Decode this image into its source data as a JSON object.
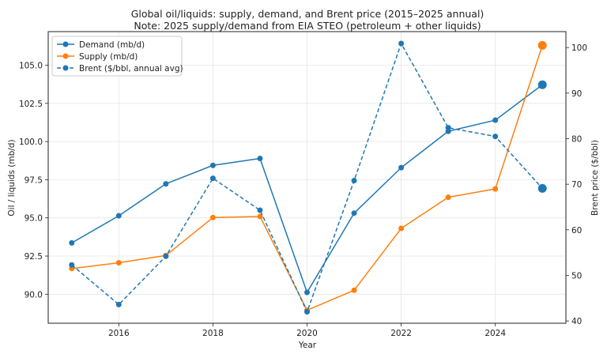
{
  "chart_data": {
    "type": "line",
    "title": "Global oil/liquids: supply, demand, and Brent price (2015–2025 annual)",
    "subtitle": "Note: 2025 supply/demand from EIA STEO (petroleum + other liquids)",
    "xlabel": "Year",
    "ylabel": "Oil / liquids (mb/d)",
    "y2label": "Brent price ($/bbl)",
    "x": [
      2015,
      2016,
      2017,
      2018,
      2019,
      2020,
      2021,
      2022,
      2023,
      2024,
      2025
    ],
    "xlim": [
      2014.5,
      2025.5
    ],
    "ylim": [
      88.1,
      107.2
    ],
    "y2lim": [
      39.5,
      103.5
    ],
    "xticks": [
      2016,
      2018,
      2020,
      2022,
      2024
    ],
    "xtick_labels": [
      "2016",
      "2018",
      "2020",
      "2022",
      "2024"
    ],
    "yticks": [
      90.0,
      92.5,
      95.0,
      97.5,
      100.0,
      102.5,
      105.0
    ],
    "ytick_labels": [
      "90.0",
      "92.5",
      "95.0",
      "97.5",
      "100.0",
      "102.5",
      "105.0"
    ],
    "y2ticks": [
      40,
      50,
      60,
      70,
      80,
      90,
      100
    ],
    "y2tick_labels": [
      "40",
      "50",
      "60",
      "70",
      "80",
      "90",
      "100"
    ],
    "grid": true,
    "legend_position": "top-left",
    "series": [
      {
        "name": "Demand (mb/d)",
        "axis": "left",
        "color": "#1f77b4",
        "style": "solid",
        "values": [
          93.36,
          95.14,
          97.23,
          98.44,
          98.89,
          90.12,
          95.31,
          98.29,
          100.67,
          101.4,
          103.72
        ],
        "highlight_last": true
      },
      {
        "name": "Supply (mb/d)",
        "axis": "left",
        "color": "#ff7f0e",
        "style": "solid",
        "values": [
          91.68,
          92.06,
          92.54,
          95.02,
          95.09,
          88.95,
          90.26,
          94.31,
          96.35,
          96.9,
          106.3
        ],
        "highlight_last": true
      },
      {
        "name": "Brent ($/bbl, annual avg)",
        "axis": "right",
        "color": "#1f77b4",
        "style": "dashed",
        "values": [
          52.3,
          43.6,
          54.2,
          71.3,
          64.3,
          42.0,
          70.8,
          100.9,
          82.4,
          80.5,
          69.1
        ],
        "highlight_last": true
      }
    ]
  }
}
